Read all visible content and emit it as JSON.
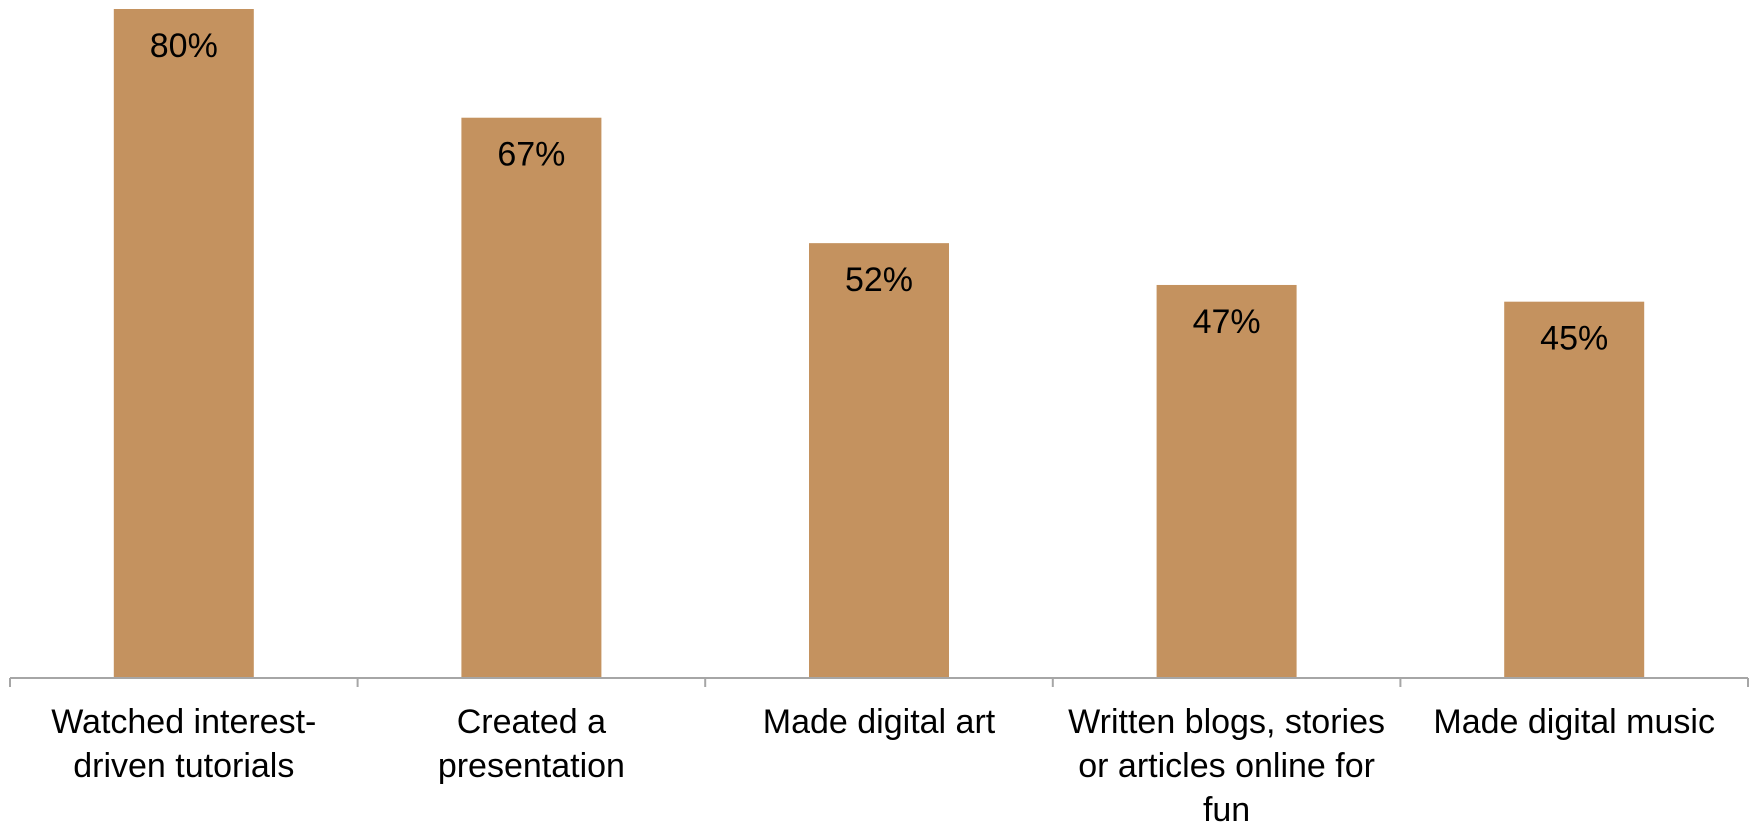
{
  "chart_data": {
    "type": "bar",
    "categories": [
      "Watched interest-driven tutorials",
      "Created a presentation",
      "Made digital art",
      "Written blogs, stories or articles online for fun",
      "Made digital music"
    ],
    "category_label_lines": [
      [
        "Watched interest-",
        "driven tutorials"
      ],
      [
        "Created a",
        "presentation"
      ],
      [
        "Made digital art"
      ],
      [
        "Written blogs, stories",
        "or articles online for",
        "fun"
      ],
      [
        "Made digital music"
      ]
    ],
    "values": [
      80,
      67,
      52,
      47,
      45
    ],
    "data_labels": [
      "80%",
      "67%",
      "52%",
      "47%",
      "45%"
    ],
    "ylim": [
      0,
      80
    ],
    "y_axis_visible": false,
    "grid": false,
    "legend": "none",
    "bar_color": "#C4925F",
    "axis_color": "#A6A6A6",
    "text_color": "#000000"
  }
}
